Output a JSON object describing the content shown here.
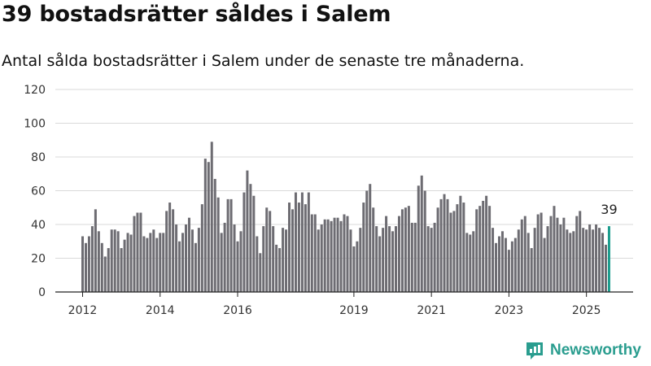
{
  "title": "39 bostadsrätter såldes i Salem",
  "subtitle": "Antal sålda bostadsrätter i Salem under de senaste tre månaderna.",
  "brand": "Newsworthy",
  "colors": {
    "bar": "#6d6c72",
    "highlight": "#1a9c8c",
    "grid": "#d9d9d9",
    "brand": "#2a9d8f"
  },
  "chart_data": {
    "type": "bar",
    "ylim": [
      0,
      120
    ],
    "yticks": [
      0,
      20,
      40,
      60,
      80,
      100,
      120
    ],
    "xticks": [
      {
        "label": "2012",
        "year": 2012
      },
      {
        "label": "2014",
        "year": 2014
      },
      {
        "label": "2016",
        "year": 2016
      },
      {
        "label": "2019",
        "year": 2019
      },
      {
        "label": "2021",
        "year": 2021
      },
      {
        "label": "2023",
        "year": 2023
      },
      {
        "label": "2025",
        "year": 2025
      }
    ],
    "start": "2012-01",
    "values": [
      33,
      29,
      33,
      39,
      49,
      36,
      29,
      21,
      26,
      37,
      37,
      36,
      26,
      31,
      35,
      34,
      45,
      47,
      47,
      33,
      32,
      35,
      37,
      32,
      35,
      35,
      48,
      53,
      49,
      40,
      30,
      35,
      40,
      44,
      37,
      29,
      38,
      52,
      79,
      77,
      89,
      67,
      56,
      35,
      41,
      55,
      55,
      40,
      30,
      36,
      59,
      72,
      64,
      57,
      33,
      23,
      39,
      50,
      48,
      39,
      28,
      26,
      38,
      37,
      53,
      49,
      59,
      53,
      59,
      52,
      59,
      46,
      46,
      37,
      40,
      43,
      43,
      42,
      44,
      44,
      42,
      46,
      45,
      37,
      27,
      30,
      38,
      53,
      60,
      64,
      50,
      39,
      33,
      38,
      45,
      39,
      36,
      39,
      45,
      49,
      50,
      51,
      41,
      41,
      63,
      69,
      60,
      39,
      38,
      41,
      50,
      55,
      58,
      55,
      47,
      48,
      52,
      57,
      53,
      35,
      34,
      36,
      49,
      51,
      54,
      57,
      51,
      38,
      29,
      33,
      36,
      32,
      25,
      30,
      32,
      37,
      43,
      45,
      35,
      26,
      38,
      46,
      47,
      32,
      39,
      45,
      51,
      44,
      40,
      44,
      37,
      35,
      36,
      45,
      48,
      38,
      37,
      40,
      37,
      40,
      38,
      35,
      28,
      39
    ],
    "highlight_label": "39"
  }
}
